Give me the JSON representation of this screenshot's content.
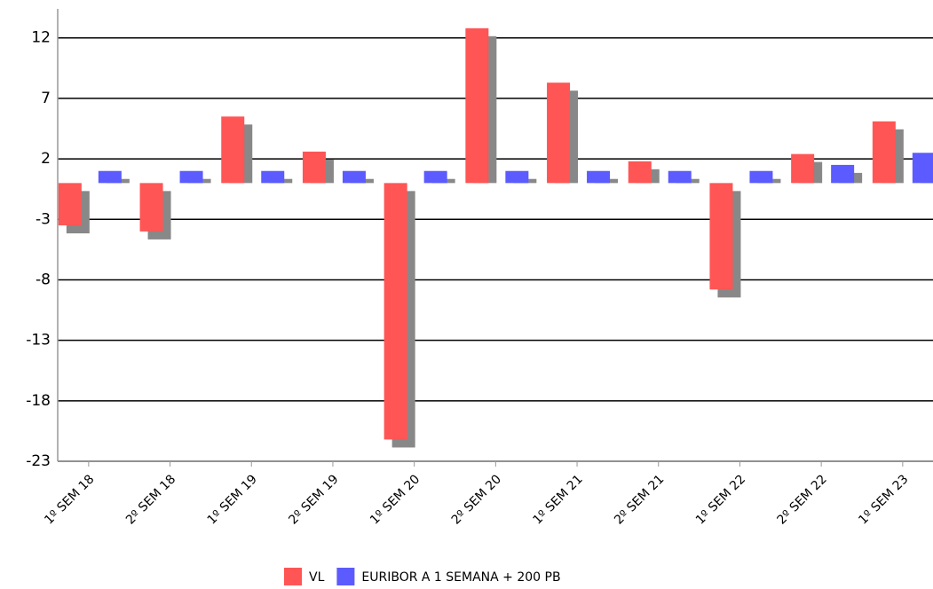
{
  "chart_data": {
    "type": "bar",
    "categories": [
      "1º SEM 18",
      "2º SEM 18",
      "1º SEM 19",
      "2º SEM 19",
      "1º SEM 20",
      "2º SEM 20",
      "1º SEM 21",
      "2º SEM 21",
      "1º SEM 22",
      "2º SEM 22",
      "1º SEM 23"
    ],
    "series": [
      {
        "name": "VL",
        "color": "#ff5555",
        "values": [
          -3.5,
          -4.0,
          5.5,
          2.6,
          -21.2,
          12.8,
          8.3,
          1.8,
          -8.8,
          2.4,
          5.1
        ]
      },
      {
        "name": "EURIBOR A 1 SEMANA + 200 PB",
        "color": "#5b5bff",
        "values": [
          1.0,
          1.0,
          1.0,
          1.0,
          1.0,
          1.0,
          1.0,
          1.0,
          1.0,
          1.5,
          2.5
        ]
      }
    ],
    "ylim": [
      -23,
      14.4
    ],
    "yticks": [
      -23,
      -18,
      -13,
      -8,
      -3,
      2,
      7,
      12
    ],
    "grid": true
  }
}
